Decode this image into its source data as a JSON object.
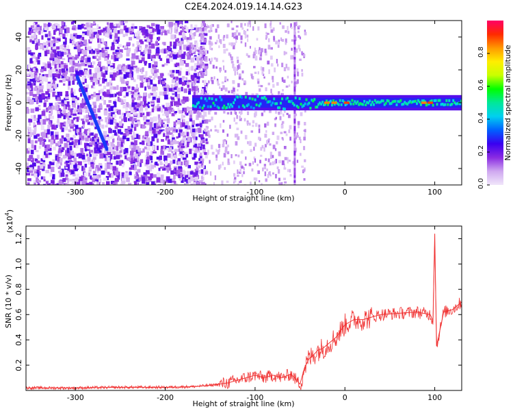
{
  "title": "C2E4.2024.019.14.14.G23",
  "chart_data": [
    {
      "type": "heatmap",
      "xlabel": "Height of straight line (km)",
      "ylabel": "Frequency (Hz)",
      "xlim": [
        -355,
        130
      ],
      "ylim": [
        -50,
        50
      ],
      "x_ticks": [
        -300,
        -200,
        -100,
        0,
        100
      ],
      "y_ticks": [
        -40,
        -20,
        0,
        20,
        40
      ],
      "colorbar": {
        "label": "Normalized spectral amplitude",
        "range": [
          0,
          1
        ],
        "ticks": [
          "0.0",
          "0.2",
          "0.4",
          "0.6",
          "0.8"
        ],
        "tick_values": [
          0.0,
          0.2,
          0.4,
          0.6,
          0.8
        ],
        "colors": [
          "#f0e6fa",
          "#cfa8f0",
          "#8a2be2",
          "#3a00f0",
          "#0060ff",
          "#00d0f0",
          "#00e89a",
          "#00ff00",
          "#c8ff00",
          "#ffee00",
          "#ff9900",
          "#ff2a00",
          "#ff0066"
        ]
      },
      "features": {
        "noise_region_x": [
          -355,
          -165
        ],
        "band_center_hz": 0,
        "band_halfwidth_hz": 3,
        "band_start_x": -170,
        "diagonal_trace": {
          "x": [
            -298,
            -265
          ],
          "y": [
            16,
            -28
          ]
        },
        "vertical_line_x": -57,
        "peaks": [
          {
            "x": -20,
            "value": 0.85
          },
          {
            "x": -12,
            "value": 0.85
          },
          {
            "x": 2,
            "value": 0.9
          },
          {
            "x": 88,
            "value": 0.85
          },
          {
            "x": 95,
            "value": 0.9
          }
        ]
      }
    },
    {
      "type": "line",
      "xlabel": "Height of straight line (km)",
      "ylabel": "SNR (10 * v/v)",
      "scale_label": "(x10",
      "scale_exponent": "4",
      "line_color": "#f03030",
      "xlim": [
        -355,
        130
      ],
      "ylim": [
        0,
        1.3
      ],
      "x_ticks": [
        -300,
        -200,
        -100,
        0,
        100
      ],
      "y_ticks": [
        0.2,
        0.4,
        0.6,
        0.8,
        1.0,
        1.2
      ],
      "series": [
        {
          "x": [
            -355,
            -300,
            -250,
            -200,
            -170,
            -150,
            -130,
            -110,
            -100,
            -90,
            -80,
            -70,
            -60,
            -50,
            -45,
            -40,
            -35,
            -30,
            -25,
            -20,
            -10,
            0,
            10,
            20,
            30,
            40,
            60,
            80,
            95,
            98,
            100,
            102,
            110,
            120,
            130
          ],
          "values": [
            0.02,
            0.02,
            0.025,
            0.025,
            0.03,
            0.04,
            0.06,
            0.1,
            0.12,
            0.1,
            0.12,
            0.1,
            0.13,
            0.05,
            0.18,
            0.25,
            0.28,
            0.32,
            0.33,
            0.36,
            0.42,
            0.52,
            0.56,
            0.56,
            0.58,
            0.6,
            0.61,
            0.62,
            0.6,
            0.55,
            1.24,
            0.35,
            0.62,
            0.64,
            0.7
          ]
        }
      ]
    }
  ]
}
